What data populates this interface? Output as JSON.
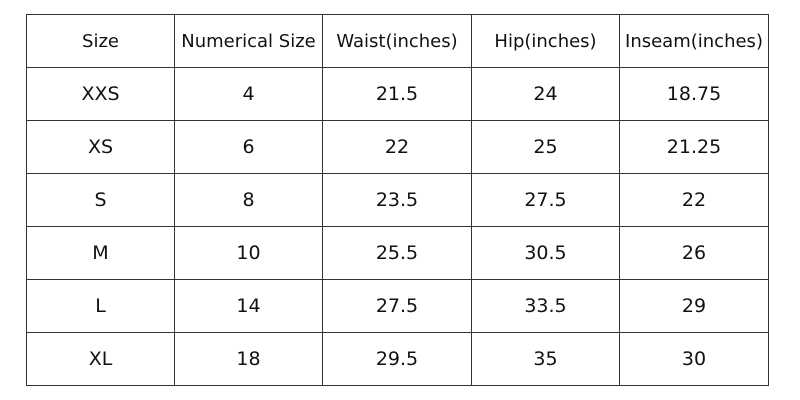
{
  "table": {
    "headers": [
      "Size",
      "Numerical Size",
      "Waist(inches)",
      "Hip(inches)",
      "Inseam(inches)"
    ],
    "rows": [
      [
        "XXS",
        "4",
        "21.5",
        "24",
        "18.75"
      ],
      [
        "XS",
        "6",
        "22",
        "25",
        "21.25"
      ],
      [
        "S",
        "8",
        "23.5",
        "27.5",
        "22"
      ],
      [
        "M",
        "10",
        "25.5",
        "30.5",
        "26"
      ],
      [
        "L",
        "14",
        "27.5",
        "33.5",
        "29"
      ],
      [
        "XL",
        "18",
        "29.5",
        "35",
        "30"
      ]
    ]
  }
}
